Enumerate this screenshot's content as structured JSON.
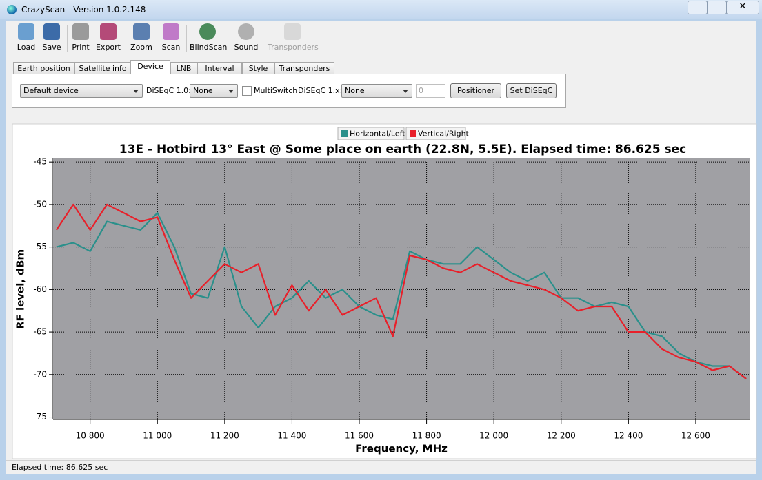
{
  "window": {
    "title": "CrazyScan - Version 1.0.2.148"
  },
  "toolbar": [
    "Load",
    "Save",
    "Print",
    "Export",
    "Zoom",
    "Scan",
    "BlindScan",
    "Sound",
    "Transponders"
  ],
  "tabs": [
    "Earth position",
    "Satellite info",
    "Device",
    "LNB",
    "Interval",
    "Style",
    "Transponders"
  ],
  "device_panel": {
    "device": "Default device",
    "diseqc10_label": "DiSEqC 1.0:",
    "diseqc10_value": "None",
    "multiswitch": "MultiSwitch",
    "diseqc1x_label": "DiSEqC 1.x:",
    "diseqc1x_value": "None",
    "spin_value": 0,
    "positioner": "Positioner",
    "set_diseqc": "Set DiSEqC"
  },
  "chart_data": {
    "type": "line",
    "title": "13E - Hotbird 13° East @ Some place on earth (22.8N, 5.5E). Elapsed time: 86.625 sec",
    "x_label": "Frequency, MHz",
    "y_label": "RF level, dBm",
    "x": [
      10700,
      10750,
      10800,
      10850,
      10900,
      10950,
      11000,
      11050,
      11100,
      11150,
      11200,
      11250,
      11300,
      11350,
      11400,
      11450,
      11500,
      11550,
      11600,
      11650,
      11700,
      11750,
      11800,
      11850,
      11900,
      11950,
      12000,
      12050,
      12100,
      12150,
      12200,
      12250,
      12300,
      12350,
      12400,
      12450,
      12500,
      12550,
      12600,
      12650,
      12700,
      12750
    ],
    "series": [
      {
        "name": "Horizontal/Left",
        "color": "#2a908b",
        "values": [
          -55,
          -54.5,
          -55.5,
          -52,
          -52.5,
          -53,
          -51,
          -55,
          -60.5,
          -61,
          -55,
          -62,
          -64.5,
          -62,
          -61,
          -59,
          -61,
          -60,
          -62,
          -63,
          -63.5,
          -55.5,
          -56.5,
          -57,
          -57,
          -55,
          -56.5,
          -58,
          -59,
          -58,
          -61,
          -61,
          -62,
          -61.5,
          -62,
          -65,
          -65.5,
          -67.5,
          -68.5,
          -69,
          -69,
          -70.5
        ]
      },
      {
        "name": "Vertical/Right",
        "color": "#e8202a",
        "values": [
          -53,
          -50,
          -53,
          -50,
          -51,
          -52,
          -51.5,
          -56.5,
          -61,
          -59,
          -57,
          -58,
          -57,
          -63,
          -59.5,
          -62.5,
          -60,
          -63,
          -62,
          -61,
          -65.5,
          -56,
          -56.5,
          -57.5,
          -58,
          -57,
          -58,
          -59,
          -59.5,
          -60,
          -61,
          -62.5,
          -62,
          -62,
          -65,
          -65,
          -67,
          -68,
          -68.5,
          -69.5,
          -69,
          -70.5
        ]
      }
    ],
    "xlim": [
      10690,
      12760
    ],
    "ylim": [
      -75.2,
      -44.5
    ],
    "xticks": [
      {
        "value": 10800,
        "label": "10 800"
      },
      {
        "value": 11000,
        "label": "11 000"
      },
      {
        "value": 11200,
        "label": "11 200"
      },
      {
        "value": 11400,
        "label": "11 400"
      },
      {
        "value": 11600,
        "label": "11 600"
      },
      {
        "value": 11800,
        "label": "11 800"
      },
      {
        "value": 12000,
        "label": "12 000"
      },
      {
        "value": 12200,
        "label": "12 200"
      },
      {
        "value": 12400,
        "label": "12 400"
      },
      {
        "value": 12600,
        "label": "12 600"
      }
    ],
    "yticks": [
      -75,
      -70,
      -65,
      -60,
      -55,
      -50,
      -45
    ],
    "grid": true,
    "legend": "top"
  },
  "status": "Elapsed time: 86.625 sec"
}
